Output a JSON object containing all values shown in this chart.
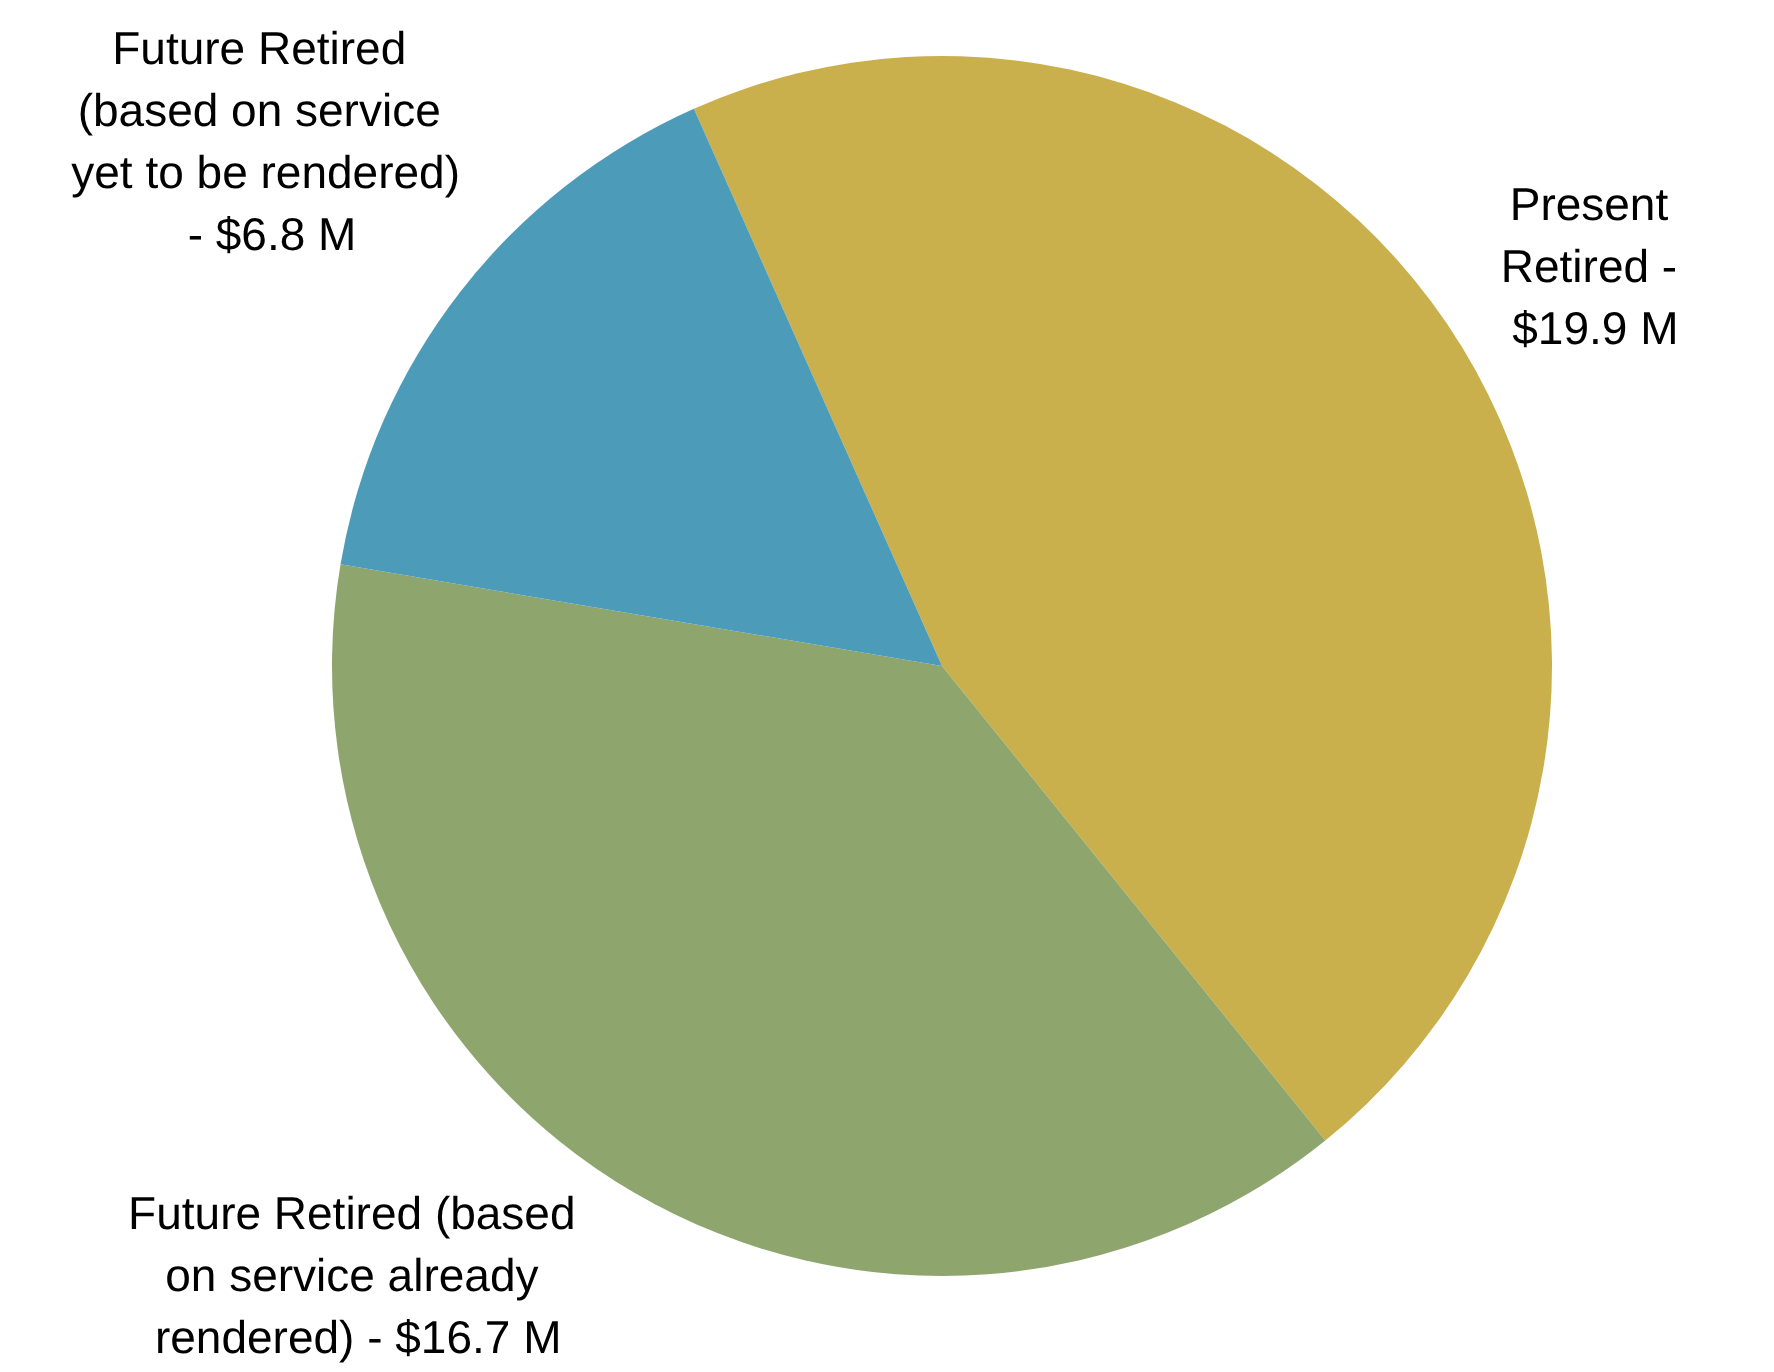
{
  "chart_data": {
    "type": "pie",
    "categories": [
      "Present Retired -",
      "Future Retired (based on service already rendered) -",
      "Future Retired (based on service yet to be rendered) -"
    ],
    "values": [
      19.9,
      16.7,
      6.8
    ],
    "value_labels": [
      "$19.9 M",
      "$16.7 M",
      "$6.8 M"
    ],
    "colors": [
      "#c9b04c",
      "#8ea66d",
      "#4b9bb9"
    ],
    "legend": false
  }
}
